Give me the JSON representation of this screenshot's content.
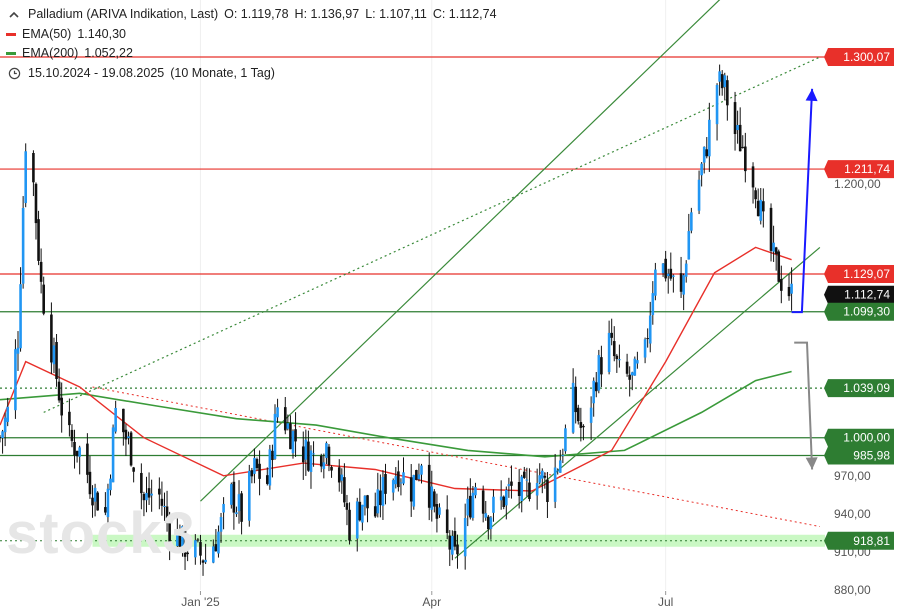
{
  "legend": {
    "instrument": "Palladium (ARIVA Indikation, Last)",
    "ohlc": {
      "o": "O: 1.119,78",
      "h": "H: 1.136,97",
      "l": "L: 1.107,11",
      "c": "C: 1.112,74"
    },
    "ema50_label": "EMA(50)",
    "ema50_value": "1.140,30",
    "ema200_label": "EMA(200)",
    "ema200_value": "1.052,22",
    "period": "15.10.2024 - 19.08.2025",
    "period_note": "(10 Monate, 1 Tag)",
    "ema50_color": "#e8302a",
    "ema200_color": "#3a9a3a",
    "clock_icon": "clock-icon"
  },
  "watermark": "stock3",
  "colors": {
    "up": "#2196f3",
    "down": "#111111",
    "resistance": "#e8302a",
    "support": "#2e7d32",
    "channel": "#3a8a3a",
    "forecast_up": "#1a1aff",
    "forecast_down": "#888888"
  },
  "chart_data": {
    "type": "candlestick",
    "x_range": [
      "2024-10-15",
      "2025-08-19"
    ],
    "ylim": [
      880,
      1345
    ],
    "y_ticks": [
      {
        "value": 880,
        "label": "880,00"
      },
      {
        "value": 910,
        "label": "910,00"
      },
      {
        "value": 940,
        "label": "940,00"
      },
      {
        "value": 970,
        "label": "970,00"
      },
      {
        "value": 1200,
        "label": "1.200,00"
      }
    ],
    "x_ticks": [
      {
        "date": "2025-01-01",
        "label": "Jan '25"
      },
      {
        "date": "2025-04-01",
        "label": "Apr"
      },
      {
        "date": "2025-07-01",
        "label": "Jul"
      }
    ],
    "price_path": [
      [
        "2024-10-15",
        1000
      ],
      [
        "2024-10-18",
        1020
      ],
      [
        "2024-10-22",
        1080
      ],
      [
        "2024-10-25",
        1235
      ],
      [
        "2024-10-28",
        1200
      ],
      [
        "2024-10-31",
        1120
      ],
      [
        "2024-11-05",
        1060
      ],
      [
        "2024-11-10",
        1000
      ],
      [
        "2024-11-15",
        990
      ],
      [
        "2024-11-20",
        960
      ],
      [
        "2024-11-25",
        940
      ],
      [
        "2024-11-29",
        1020
      ],
      [
        "2024-12-05",
        990
      ],
      [
        "2024-12-10",
        950
      ],
      [
        "2024-12-15",
        960
      ],
      [
        "2024-12-20",
        930
      ],
      [
        "2024-12-26",
        915
      ],
      [
        "2025-01-03",
        905
      ],
      [
        "2025-01-08",
        925
      ],
      [
        "2025-01-13",
        955
      ],
      [
        "2025-01-17",
        940
      ],
      [
        "2025-01-22",
        975
      ],
      [
        "2025-01-27",
        965
      ],
      [
        "2025-01-31",
        1025
      ],
      [
        "2025-02-05",
        1005
      ],
      [
        "2025-02-10",
        990
      ],
      [
        "2025-02-14",
        985
      ],
      [
        "2025-02-19",
        995
      ],
      [
        "2025-02-24",
        970
      ],
      [
        "2025-02-28",
        930
      ],
      [
        "2025-03-05",
        950
      ],
      [
        "2025-03-10",
        940
      ],
      [
        "2025-03-14",
        965
      ],
      [
        "2025-03-19",
        975
      ],
      [
        "2025-03-24",
        960
      ],
      [
        "2025-03-28",
        985
      ],
      [
        "2025-04-02",
        940
      ],
      [
        "2025-04-07",
        920
      ],
      [
        "2025-04-10",
        905
      ],
      [
        "2025-04-14",
        935
      ],
      [
        "2025-04-18",
        965
      ],
      [
        "2025-04-23",
        940
      ],
      [
        "2025-04-28",
        950
      ],
      [
        "2025-05-02",
        960
      ],
      [
        "2025-05-07",
        955
      ],
      [
        "2025-05-12",
        975
      ],
      [
        "2025-05-16",
        960
      ],
      [
        "2025-05-21",
        985
      ],
      [
        "2025-05-26",
        1030
      ],
      [
        "2025-05-30",
        1000
      ],
      [
        "2025-06-04",
        1050
      ],
      [
        "2025-06-09",
        1075
      ],
      [
        "2025-06-13",
        1050
      ],
      [
        "2025-06-18",
        1045
      ],
      [
        "2025-06-23",
        1065
      ],
      [
        "2025-06-27",
        1140
      ],
      [
        "2025-07-02",
        1130
      ],
      [
        "2025-07-07",
        1110
      ],
      [
        "2025-07-11",
        1180
      ],
      [
        "2025-07-16",
        1220
      ],
      [
        "2025-07-21",
        1280
      ],
      [
        "2025-07-24",
        1275
      ],
      [
        "2025-07-28",
        1240
      ],
      [
        "2025-07-31",
        1230
      ],
      [
        "2025-08-05",
        1200
      ],
      [
        "2025-08-08",
        1165
      ],
      [
        "2025-08-12",
        1140
      ],
      [
        "2025-08-15",
        1125
      ],
      [
        "2025-08-19",
        1112.74
      ]
    ],
    "ema50_path": [
      [
        "2024-10-15",
        1010
      ],
      [
        "2024-10-25",
        1060
      ],
      [
        "2024-11-15",
        1040
      ],
      [
        "2024-12-10",
        1000
      ],
      [
        "2025-01-10",
        970
      ],
      [
        "2025-02-10",
        980
      ],
      [
        "2025-03-10",
        975
      ],
      [
        "2025-04-10",
        960
      ],
      [
        "2025-05-10",
        958
      ],
      [
        "2025-06-10",
        990
      ],
      [
        "2025-07-01",
        1060
      ],
      [
        "2025-07-20",
        1130
      ],
      [
        "2025-08-05",
        1150
      ],
      [
        "2025-08-19",
        1140.3
      ]
    ],
    "ema200_path": [
      [
        "2024-10-15",
        1030
      ],
      [
        "2024-11-15",
        1035
      ],
      [
        "2024-12-15",
        1025
      ],
      [
        "2025-01-15",
        1015
      ],
      [
        "2025-02-15",
        1010
      ],
      [
        "2025-03-15",
        1000
      ],
      [
        "2025-04-15",
        990
      ],
      [
        "2025-05-15",
        985
      ],
      [
        "2025-06-15",
        990
      ],
      [
        "2025-07-15",
        1020
      ],
      [
        "2025-08-05",
        1045
      ],
      [
        "2025-08-19",
        1052.22
      ]
    ],
    "levels": [
      {
        "value": 1300.07,
        "label": "1.300,07",
        "style": "resistance"
      },
      {
        "value": 1211.74,
        "label": "1.211,74",
        "style": "resistance"
      },
      {
        "value": 1129.07,
        "label": "1.129,07",
        "style": "resistance"
      },
      {
        "value": 1112.74,
        "label": "1.112,74",
        "style": "last"
      },
      {
        "value": 1099.3,
        "label": "1.099,30",
        "style": "support"
      },
      {
        "value": 1039.09,
        "label": "1.039,09",
        "style": "support-dotted"
      },
      {
        "value": 1000.0,
        "label": "1.000,00",
        "style": "support"
      },
      {
        "value": 985.98,
        "label": "985,98",
        "style": "support"
      },
      {
        "value": 918.81,
        "label": "918,81",
        "style": "support-zone"
      }
    ],
    "trendlines": [
      {
        "style": "channel",
        "from": [
          "2025-01-01",
          950
        ],
        "to": [
          "2025-08-19",
          1400
        ]
      },
      {
        "style": "channel",
        "from": [
          "2025-04-10",
          905
        ],
        "to": [
          "2025-08-30",
          1150
        ]
      },
      {
        "style": "channel-dotted",
        "from": [
          "2024-11-01",
          1020
        ],
        "to": [
          "2025-08-30",
          1300
        ]
      },
      {
        "style": "downtrend-dotted",
        "from": [
          "2024-11-20",
          1040
        ],
        "to": [
          "2025-08-30",
          930
        ]
      }
    ],
    "forecasts": [
      {
        "direction": "up",
        "points": [
          [
            "2025-08-19",
            1099
          ],
          [
            "2025-08-23",
            1099
          ],
          [
            "2025-08-27",
            1275
          ]
        ]
      },
      {
        "direction": "down",
        "points": [
          [
            "2025-08-20",
            1075
          ],
          [
            "2025-08-25",
            1075
          ],
          [
            "2025-08-27",
            975
          ]
        ]
      }
    ]
  }
}
